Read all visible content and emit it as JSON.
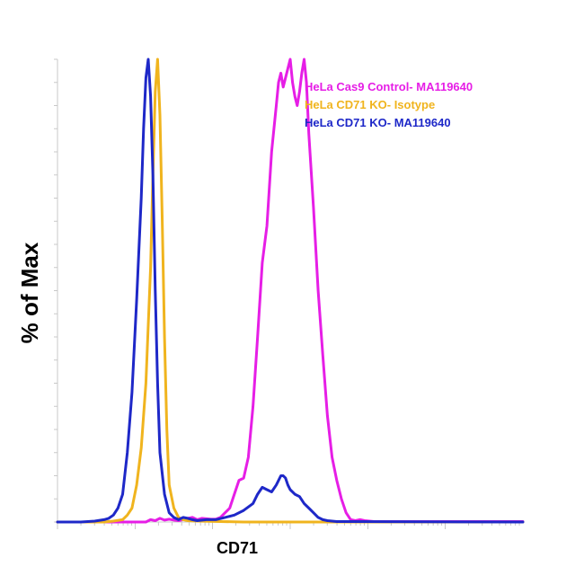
{
  "chart_data": {
    "type": "line",
    "title": "",
    "xlabel": "CD71",
    "ylabel": "% of Max",
    "xlim": [
      0,
      100
    ],
    "ylim": [
      0,
      100
    ],
    "legend_position": "top-right",
    "grid": false,
    "series": [
      {
        "name": "HeLa Cas9 Control- MA119640",
        "color": "#e61ee6",
        "x": [
          0,
          19,
          20,
          21,
          22,
          23,
          24,
          25,
          26,
          27,
          28,
          29,
          30,
          31,
          32,
          33,
          34,
          35,
          36,
          37,
          38,
          39,
          40,
          41,
          42,
          43,
          44,
          45,
          46,
          47,
          47.5,
          48,
          48.5,
          49,
          49.5,
          50,
          50.5,
          51,
          51.5,
          52,
          52.5,
          53,
          53.5,
          54,
          55,
          56,
          57,
          58,
          59,
          60,
          61,
          62,
          63,
          64,
          65,
          66,
          67,
          68,
          100
        ],
        "y": [
          0,
          0,
          0.5,
          0.3,
          0.8,
          0.4,
          0.6,
          0.4,
          0.3,
          0.5,
          0.8,
          1.0,
          0.5,
          0.8,
          0.7,
          0.6,
          0.6,
          1.0,
          2.0,
          3.0,
          6.0,
          9.0,
          9.5,
          14,
          25,
          40,
          56,
          64,
          80,
          90,
          95,
          97,
          94,
          96,
          98,
          100,
          95,
          92,
          90,
          93,
          97,
          100,
          95,
          84,
          68,
          50,
          36,
          23,
          14,
          9.0,
          5.0,
          2.0,
          0.5,
          0.3,
          0.5,
          0.3,
          0.2,
          0.1,
          0.1
        ]
      },
      {
        "name": "HeLa CD71  KO- Isotype",
        "color": "#f0b41e",
        "x": [
          0,
          10,
          12,
          14,
          15,
          16,
          17,
          18,
          19,
          20,
          20.5,
          21,
          21.5,
          22,
          22.5,
          23,
          23.5,
          24,
          25,
          26,
          27,
          28,
          30,
          35,
          40,
          50,
          100
        ],
        "y": [
          0,
          0,
          0.2,
          0.5,
          1.5,
          3.0,
          8.0,
          16,
          30,
          55,
          75,
          93,
          100,
          88,
          65,
          40,
          20,
          8.0,
          3.0,
          1.0,
          0.5,
          0.3,
          0.2,
          0.1,
          0,
          0,
          0
        ]
      },
      {
        "name": "HeLa CD71 KO-  MA119640",
        "color": "#1e28c8",
        "x": [
          0,
          5,
          8,
          10,
          11,
          12,
          13,
          14,
          15,
          16,
          17,
          18,
          18.5,
          19,
          19.5,
          20,
          20.5,
          21,
          21.5,
          22,
          23,
          24,
          25,
          26,
          27,
          28,
          29,
          30,
          32,
          34,
          36,
          38,
          40,
          42,
          43,
          44,
          45,
          46,
          47,
          48,
          48.5,
          49,
          49.5,
          50,
          51,
          52,
          53,
          54,
          55,
          56,
          57,
          58,
          60,
          100
        ],
        "y": [
          0,
          0,
          0.2,
          0.5,
          0.8,
          1.5,
          3.0,
          6.0,
          15,
          28,
          48,
          70,
          85,
          96,
          100,
          92,
          75,
          50,
          30,
          15,
          6.0,
          2.0,
          1.0,
          0.5,
          1.0,
          0.8,
          0.5,
          0.3,
          0.5,
          0.5,
          1.0,
          1.5,
          2.5,
          4.0,
          6.0,
          7.5,
          7.0,
          6.5,
          8.0,
          10,
          10,
          9.5,
          8.0,
          7.0,
          6.0,
          5.5,
          4.0,
          3.0,
          2.0,
          1.0,
          0.5,
          0.3,
          0.1,
          0
        ]
      }
    ]
  }
}
